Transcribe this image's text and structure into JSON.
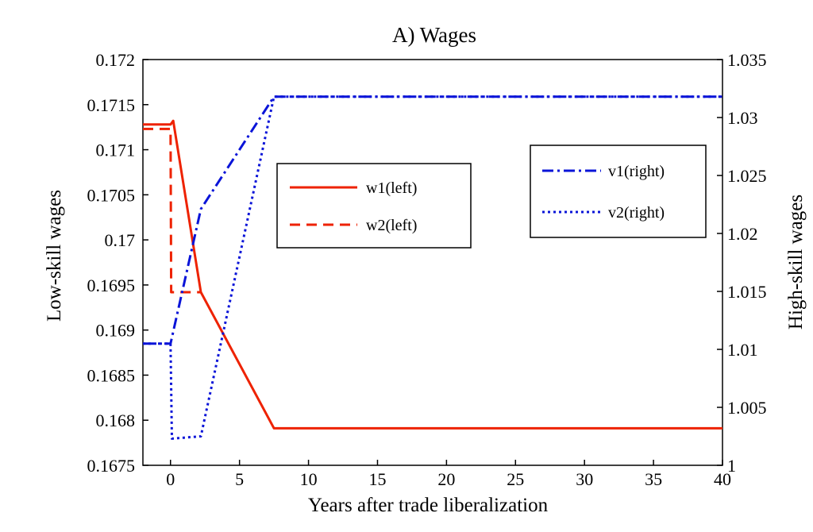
{
  "chart_data": {
    "type": "line",
    "title": "A) Wages",
    "xlabel": "Years after trade liberalization",
    "ylabel_left": "Low-skill wages",
    "ylabel_right": "High-skill wages",
    "xlim": [
      -2,
      40
    ],
    "ylim_left": [
      0.1675,
      0.172
    ],
    "ylim_right": [
      1.0,
      1.035
    ],
    "x_ticks": [
      "0",
      "5",
      "10",
      "15",
      "20",
      "25",
      "30",
      "35",
      "40"
    ],
    "x_tick_values": [
      0,
      5,
      10,
      15,
      20,
      25,
      30,
      35,
      40
    ],
    "y_left_ticks": [
      "0.1675",
      "0.168",
      "0.1685",
      "0.169",
      "0.1695",
      "0.17",
      "0.1705",
      "0.171",
      "0.1715",
      "0.172"
    ],
    "y_left_tick_values": [
      0.1675,
      0.168,
      0.1685,
      0.169,
      0.1695,
      0.17,
      0.1705,
      0.171,
      0.1715,
      0.172
    ],
    "y_right_ticks": [
      "1",
      "1.005",
      "1.01",
      "1.015",
      "1.02",
      "1.025",
      "1.03",
      "1.035"
    ],
    "y_right_tick_values": [
      1.0,
      1.005,
      1.01,
      1.015,
      1.02,
      1.025,
      1.03,
      1.035
    ],
    "grid": false,
    "legends": [
      {
        "placement": "upper-center",
        "entries": [
          "w1(left)",
          "w2(left)"
        ]
      },
      {
        "placement": "upper-right",
        "entries": [
          "v1(right)",
          "v2(right)"
        ]
      }
    ],
    "series": [
      {
        "name": "w1(left)",
        "axis": "left",
        "color": "#ee2200",
        "style": "solid",
        "x": [
          -2,
          0,
          0.2,
          2.2,
          7.5,
          40
        ],
        "y": [
          0.17128,
          0.17128,
          0.17132,
          0.16942,
          0.16791,
          0.16791
        ]
      },
      {
        "name": "w2(left)",
        "axis": "left",
        "color": "#ee2200",
        "style": "dashed",
        "x": [
          -2,
          0,
          0.05,
          2.2
        ],
        "y": [
          0.17123,
          0.17123,
          0.16942,
          0.16942
        ]
      },
      {
        "name": "v1(right)",
        "axis": "right",
        "color": "#0a14d8",
        "style": "dashdot",
        "x": [
          -2,
          0,
          2.2,
          7.5,
          40
        ],
        "y": [
          1.0105,
          1.0105,
          1.0221,
          1.0318,
          1.0318
        ]
      },
      {
        "name": "v2(right)",
        "axis": "right",
        "color": "#0a14d8",
        "style": "dotted",
        "x": [
          -2,
          0,
          0.1,
          2.2,
          7.5,
          40
        ],
        "y": [
          1.0105,
          1.0105,
          1.0023,
          1.0025,
          1.0318,
          1.0318
        ]
      }
    ]
  }
}
